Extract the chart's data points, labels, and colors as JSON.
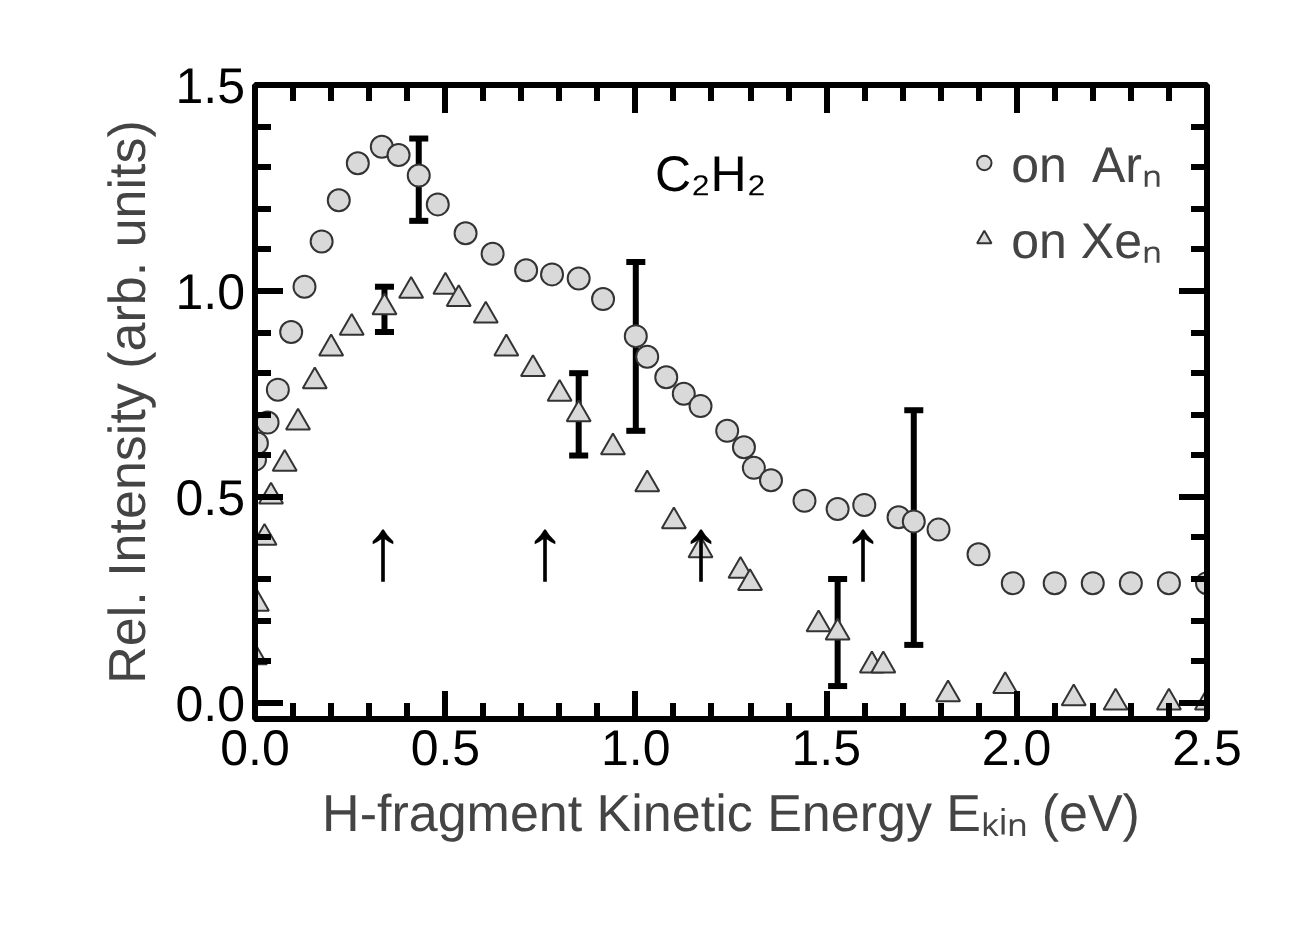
{
  "chart_data": {
    "type": "scatter",
    "xlabel": "H-fragment Kinetic Energy Eₖᵢₙ (eV)",
    "ylabel": "Rel. Intensity (arb. units)",
    "xlim": [
      0,
      2.5
    ],
    "ylim": [
      -0.04,
      1.5
    ],
    "xticks": [
      {
        "value": 0,
        "label": "0.0"
      },
      {
        "value": 0.1,
        "label": null
      },
      {
        "value": 0.2,
        "label": null
      },
      {
        "value": 0.3,
        "label": null
      },
      {
        "value": 0.4,
        "label": null
      },
      0.5,
      {
        "value": 0.6,
        "label": null
      },
      {
        "value": 0.7,
        "label": null
      },
      {
        "value": 0.8,
        "label": null
      },
      {
        "value": 0.9,
        "label": null
      },
      {
        "value": 1,
        "label": "1.0"
      },
      {
        "value": 1.1,
        "label": null
      },
      {
        "value": 1.2,
        "label": null
      },
      {
        "value": 1.3,
        "label": null
      },
      {
        "value": 1.4,
        "label": null
      },
      1.5,
      {
        "value": 1.6,
        "label": null
      },
      {
        "value": 1.7,
        "label": null
      },
      {
        "value": 1.8,
        "label": null
      },
      {
        "value": 1.9,
        "label": null
      },
      {
        "value": 2,
        "label": "2.0"
      },
      {
        "value": 2.1,
        "label": null
      },
      {
        "value": 2.2,
        "label": null
      },
      {
        "value": 2.3,
        "label": null
      },
      {
        "value": 2.4,
        "label": null
      },
      2.5
    ],
    "yticks": [
      {
        "value": 0,
        "label": "0.0"
      },
      {
        "value": 0.1,
        "label": null
      },
      {
        "value": 0.2,
        "label": null
      },
      {
        "value": 0.3,
        "label": null
      },
      {
        "value": 0.4,
        "label": null
      },
      0.5,
      {
        "value": 0.6,
        "label": null
      },
      {
        "value": 0.7,
        "label": null
      },
      {
        "value": 0.8,
        "label": null
      },
      {
        "value": 0.9,
        "label": null
      },
      {
        "value": 1,
        "label": "1.0"
      },
      {
        "value": 1.1,
        "label": null
      },
      {
        "value": 1.2,
        "label": null
      },
      {
        "value": 1.3,
        "label": null
      },
      {
        "value": 1.4,
        "label": null
      },
      1.5
    ],
    "grid": false,
    "legend": "top right",
    "series": [
      {
        "name": "on  Arₙ",
        "color": "#d9d9d9",
        "marker": "circle",
        "x": [
          0,
          0.005,
          0.033,
          0.06,
          0.095,
          0.13,
          0.175,
          0.22,
          0.27,
          0.333,
          0.377,
          0.43,
          0.48,
          0.553,
          0.624,
          0.712,
          0.78,
          0.85,
          0.914,
          1.0,
          1.03,
          1.08,
          1.126,
          1.17,
          1.24,
          1.284,
          1.31,
          1.355,
          1.443,
          1.53,
          1.6,
          1.69,
          1.73,
          1.795,
          1.9,
          1.99,
          2.1,
          2.2,
          2.3,
          2.4,
          2.5
        ],
        "values": [
          0.59,
          0.63,
          0.68,
          0.76,
          0.9,
          1.01,
          1.12,
          1.22,
          1.31,
          1.35,
          1.33,
          1.28,
          1.21,
          1.14,
          1.09,
          1.05,
          1.04,
          1.03,
          0.98,
          0.89,
          0.84,
          0.79,
          0.75,
          0.72,
          0.66,
          0.62,
          0.57,
          0.54,
          0.49,
          0.47,
          0.48,
          0.45,
          0.44,
          0.42,
          0.36,
          0.29,
          0.29,
          0.29,
          0.29,
          0.29,
          0.29
        ],
        "errors": [
          null,
          null,
          null,
          null,
          null,
          null,
          null,
          null,
          null,
          null,
          null,
          [
            1.17,
            1.37
          ],
          null,
          null,
          null,
          null,
          null,
          null,
          null,
          [
            0.66,
            1.07
          ],
          null,
          null,
          null,
          null,
          null,
          null,
          null,
          null,
          null,
          null,
          null,
          null,
          [
            0.14,
            0.71
          ],
          null,
          null,
          null,
          null,
          null,
          null,
          null,
          null
        ]
      },
      {
        "name": "on Xeₙ",
        "color": "#d9d9d9",
        "marker": "triangle",
        "x": [
          0,
          0.005,
          0.025,
          0.042,
          0.078,
          0.113,
          0.157,
          0.2,
          0.254,
          0.34,
          0.41,
          0.5,
          0.535,
          0.606,
          0.66,
          0.73,
          0.8,
          0.85,
          0.94,
          1.03,
          1.1,
          1.17,
          1.275,
          1.3,
          1.48,
          1.53,
          1.62,
          1.65,
          1.82,
          1.97,
          2.15,
          2.26,
          2.4,
          2.5
        ],
        "values": [
          0.11,
          0.24,
          0.4,
          0.5,
          0.58,
          0.68,
          0.78,
          0.86,
          0.91,
          0.96,
          1.0,
          1.01,
          0.98,
          0.94,
          0.86,
          0.81,
          0.75,
          0.7,
          0.62,
          0.53,
          0.44,
          0.37,
          0.32,
          0.29,
          0.19,
          0.17,
          0.09,
          0.09,
          0.02,
          0.04,
          0.01,
          0.0,
          0.0,
          0.0
        ],
        "errors": [
          null,
          null,
          null,
          null,
          null,
          null,
          null,
          null,
          null,
          [
            0.9,
            1.01
          ],
          null,
          null,
          null,
          null,
          null,
          null,
          null,
          [
            0.6,
            0.8
          ],
          null,
          null,
          null,
          null,
          null,
          null,
          null,
          [
            0.04,
            0.3
          ],
          null,
          null,
          null,
          null,
          null,
          null,
          null,
          null
        ]
      }
    ],
    "annotations": [
      "C₂H₂",
      "↑",
      "↑",
      "↑",
      "↑"
    ]
  }
}
